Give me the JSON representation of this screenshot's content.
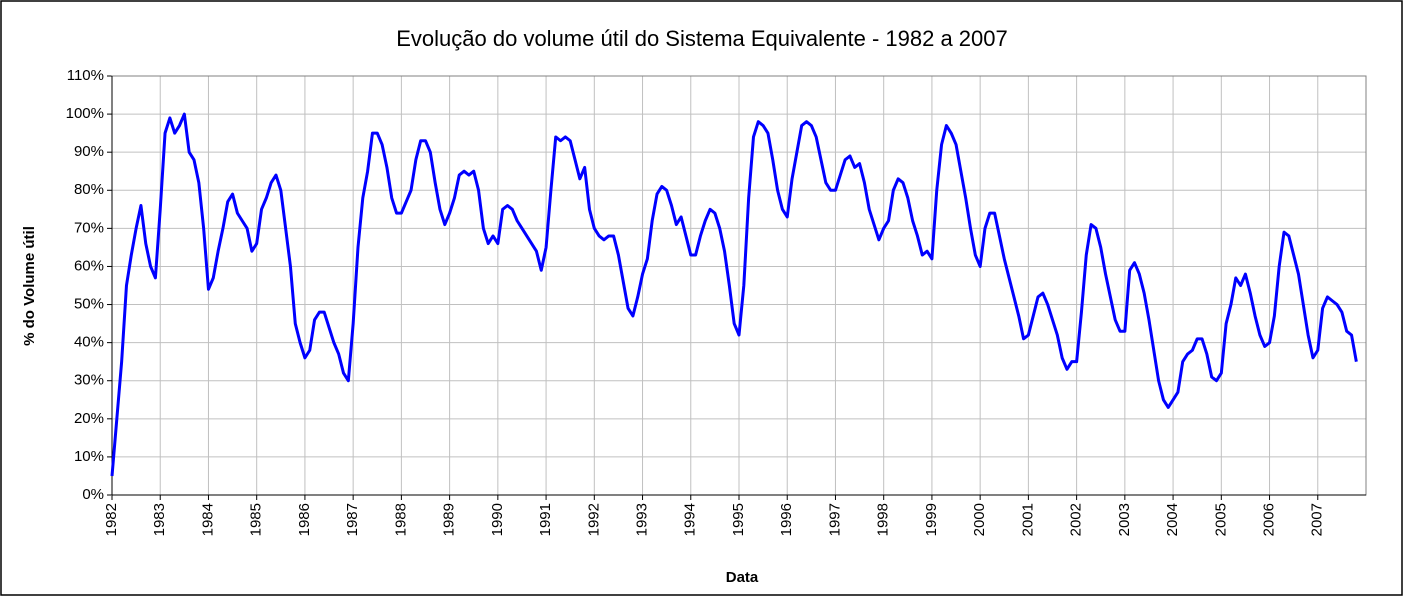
{
  "chart_data": {
    "type": "line",
    "title": "Evolução do volume útil do Sistema Equivalente - 1982 a 2007",
    "x_label": "Data",
    "y_label": "% do Volume útil",
    "xlim": [
      1982,
      2008
    ],
    "xticks": [
      1982,
      1983,
      1984,
      1985,
      1986,
      1987,
      1988,
      1989,
      1990,
      1991,
      1992,
      1993,
      1994,
      1995,
      1996,
      1997,
      1998,
      1999,
      2000,
      2001,
      2002,
      2003,
      2004,
      2005,
      2006,
      2007
    ],
    "ylim": [
      0,
      110
    ],
    "yticks": [
      {
        "value": 0,
        "label": "0%"
      },
      {
        "value": 10,
        "label": "10%"
      },
      {
        "value": 20,
        "label": "20%"
      },
      {
        "value": 30,
        "label": "30%"
      },
      {
        "value": 40,
        "label": "40%"
      },
      {
        "value": 50,
        "label": "50%"
      },
      {
        "value": 60,
        "label": "60%"
      },
      {
        "value": 70,
        "label": "70%"
      },
      {
        "value": 80,
        "label": "80%"
      },
      {
        "value": 90,
        "label": "90%"
      },
      {
        "value": 100,
        "label": "100%"
      },
      {
        "value": 110,
        "label": "110%"
      }
    ],
    "grid": true,
    "x": [
      1982.0,
      1982.1,
      1982.2,
      1982.3,
      1982.4,
      1982.5,
      1982.6,
      1982.7,
      1982.8,
      1982.9,
      1983.0,
      1983.1,
      1983.2,
      1983.3,
      1983.4,
      1983.5,
      1983.6,
      1983.7,
      1983.8,
      1983.9,
      1984.0,
      1984.1,
      1984.2,
      1984.3,
      1984.4,
      1984.5,
      1984.6,
      1984.7,
      1984.8,
      1984.9,
      1985.0,
      1985.1,
      1985.2,
      1985.3,
      1985.4,
      1985.5,
      1985.6,
      1985.7,
      1985.8,
      1985.9,
      1986.0,
      1986.1,
      1986.2,
      1986.3,
      1986.4,
      1986.5,
      1986.6,
      1986.7,
      1986.8,
      1986.9,
      1987.0,
      1987.1,
      1987.2,
      1987.3,
      1987.4,
      1987.5,
      1987.6,
      1987.7,
      1987.8,
      1987.9,
      1988.0,
      1988.1,
      1988.2,
      1988.3,
      1988.4,
      1988.5,
      1988.6,
      1988.7,
      1988.8,
      1988.9,
      1989.0,
      1989.1,
      1989.2,
      1989.3,
      1989.4,
      1989.5,
      1989.6,
      1989.7,
      1989.8,
      1989.9,
      1990.0,
      1990.1,
      1990.2,
      1990.3,
      1990.4,
      1990.5,
      1990.6,
      1990.7,
      1990.8,
      1990.9,
      1991.0,
      1991.1,
      1991.2,
      1991.3,
      1991.4,
      1991.5,
      1991.6,
      1991.7,
      1991.8,
      1991.9,
      1992.0,
      1992.1,
      1992.2,
      1992.3,
      1992.4,
      1992.5,
      1992.6,
      1992.7,
      1992.8,
      1992.9,
      1993.0,
      1993.1,
      1993.2,
      1993.3,
      1993.4,
      1993.5,
      1993.6,
      1993.7,
      1993.8,
      1993.9,
      1994.0,
      1994.1,
      1994.2,
      1994.3,
      1994.4,
      1994.5,
      1994.6,
      1994.7,
      1994.8,
      1994.9,
      1995.0,
      1995.1,
      1995.2,
      1995.3,
      1995.4,
      1995.5,
      1995.6,
      1995.7,
      1995.8,
      1995.9,
      1996.0,
      1996.1,
      1996.2,
      1996.3,
      1996.4,
      1996.5,
      1996.6,
      1996.7,
      1996.8,
      1996.9,
      1997.0,
      1997.1,
      1997.2,
      1997.3,
      1997.4,
      1997.5,
      1997.6,
      1997.7,
      1997.8,
      1997.9,
      1998.0,
      1998.1,
      1998.2,
      1998.3,
      1998.4,
      1998.5,
      1998.6,
      1998.7,
      1998.8,
      1998.9,
      1999.0,
      1999.1,
      1999.2,
      1999.3,
      1999.4,
      1999.5,
      1999.6,
      1999.7,
      1999.8,
      1999.9,
      2000.0,
      2000.1,
      2000.2,
      2000.3,
      2000.4,
      2000.5,
      2000.6,
      2000.7,
      2000.8,
      2000.9,
      2001.0,
      2001.1,
      2001.2,
      2001.3,
      2001.4,
      2001.5,
      2001.6,
      2001.7,
      2001.8,
      2001.9,
      2002.0,
      2002.1,
      2002.2,
      2002.3,
      2002.4,
      2002.5,
      2002.6,
      2002.7,
      2002.8,
      2002.9,
      2003.0,
      2003.1,
      2003.2,
      2003.3,
      2003.4,
      2003.5,
      2003.6,
      2003.7,
      2003.8,
      2003.9,
      2004.0,
      2004.1,
      2004.2,
      2004.3,
      2004.4,
      2004.5,
      2004.6,
      2004.7,
      2004.8,
      2004.9,
      2005.0,
      2005.1,
      2005.2,
      2005.3,
      2005.4,
      2005.5,
      2005.6,
      2005.7,
      2005.8,
      2005.9,
      2006.0,
      2006.1,
      2006.2,
      2006.3,
      2006.4,
      2006.5,
      2006.6,
      2006.7,
      2006.8,
      2006.9,
      2007.0,
      2007.1,
      2007.2,
      2007.3,
      2007.4,
      2007.5,
      2007.6,
      2007.7,
      2007.8
    ],
    "series": [
      {
        "color": "#0000ff",
        "values": [
          5,
          20,
          35,
          55,
          63,
          70,
          76,
          66,
          60,
          57,
          75,
          95,
          99,
          95,
          97,
          100,
          90,
          88,
          82,
          70,
          54,
          57,
          64,
          70,
          77,
          79,
          74,
          72,
          70,
          64,
          66,
          75,
          78,
          82,
          84,
          80,
          70,
          60,
          45,
          40,
          36,
          38,
          46,
          48,
          48,
          44,
          40,
          37,
          32,
          30,
          45,
          65,
          78,
          85,
          95,
          95,
          92,
          86,
          78,
          74,
          74,
          77,
          80,
          88,
          93,
          93,
          90,
          82,
          75,
          71,
          74,
          78,
          84,
          85,
          84,
          85,
          80,
          70,
          66,
          68,
          66,
          75,
          76,
          75,
          72,
          70,
          68,
          66,
          64,
          59,
          65,
          80,
          94,
          93,
          94,
          93,
          88,
          83,
          86,
          75,
          70,
          68,
          67,
          68,
          68,
          63,
          56,
          49,
          47,
          52,
          58,
          62,
          72,
          79,
          81,
          80,
          76,
          71,
          73,
          68,
          63,
          63,
          68,
          72,
          75,
          74,
          70,
          64,
          55,
          45,
          42,
          55,
          78,
          94,
          98,
          97,
          95,
          88,
          80,
          75,
          73,
          83,
          90,
          97,
          98,
          97,
          94,
          88,
          82,
          80,
          80,
          84,
          88,
          89,
          86,
          87,
          82,
          75,
          71,
          67,
          70,
          72,
          80,
          83,
          82,
          78,
          72,
          68,
          63,
          64,
          62,
          80,
          92,
          97,
          95,
          92,
          85,
          78,
          70,
          63,
          60,
          70,
          74,
          74,
          68,
          62,
          57,
          52,
          47,
          41,
          42,
          47,
          52,
          53,
          50,
          46,
          42,
          36,
          33,
          35,
          35,
          48,
          63,
          71,
          70,
          65,
          58,
          52,
          46,
          43,
          43,
          59,
          61,
          58,
          53,
          46,
          38,
          30,
          25,
          23,
          25,
          27,
          35,
          37,
          38,
          41,
          41,
          37,
          31,
          30,
          32,
          45,
          50,
          57,
          55,
          58,
          53,
          47,
          42,
          39,
          40,
          47,
          60,
          69,
          68,
          63,
          58,
          50,
          42,
          36,
          38,
          49,
          52,
          51,
          50,
          48,
          43,
          42,
          35
        ]
      }
    ]
  }
}
